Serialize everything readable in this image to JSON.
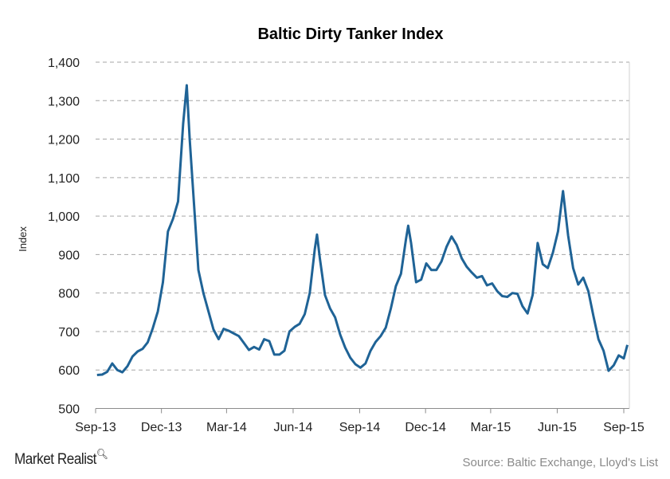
{
  "chart_data": {
    "type": "line",
    "title": "Baltic Dirty Tanker Index",
    "xlabel": "",
    "ylabel": "Index",
    "ylim": [
      500,
      1400
    ],
    "yticks": [
      "500",
      "600",
      "700",
      "800",
      "900",
      "1,000",
      "1,100",
      "1,200",
      "1,300",
      "1,400"
    ],
    "ytick_values": [
      500,
      600,
      700,
      800,
      900,
      1000,
      1100,
      1200,
      1300,
      1400
    ],
    "xticks": [
      "Sep-13",
      "Dec-13",
      "Mar-14",
      "Jun-14",
      "Sep-14",
      "Dec-14",
      "Mar-15",
      "Jun-15",
      "Sep-15"
    ],
    "xtick_dates": [
      "2013-09-01",
      "2013-12-01",
      "2014-03-01",
      "2014-06-01",
      "2014-09-01",
      "2014-12-01",
      "2015-03-01",
      "2015-06-01",
      "2015-09-01"
    ],
    "grid": true,
    "line_color": "#1f6396",
    "series": [
      {
        "points": [
          [
            "2013-09-03",
            587
          ],
          [
            "2013-09-10",
            588
          ],
          [
            "2013-09-17",
            595
          ],
          [
            "2013-09-24",
            617
          ],
          [
            "2013-10-01",
            600
          ],
          [
            "2013-10-08",
            594
          ],
          [
            "2013-10-15",
            610
          ],
          [
            "2013-10-22",
            635
          ],
          [
            "2013-10-29",
            648
          ],
          [
            "2013-11-05",
            655
          ],
          [
            "2013-11-12",
            672
          ],
          [
            "2013-11-19",
            708
          ],
          [
            "2013-11-26",
            752
          ],
          [
            "2013-12-03",
            828
          ],
          [
            "2013-12-10",
            960
          ],
          [
            "2013-12-17",
            993
          ],
          [
            "2013-12-24",
            1038
          ],
          [
            "2013-12-31",
            1240
          ],
          [
            "2014-01-05",
            1340
          ],
          [
            "2014-01-09",
            1200
          ],
          [
            "2014-01-14",
            1060
          ],
          [
            "2014-01-21",
            860
          ],
          [
            "2014-01-28",
            800
          ],
          [
            "2014-02-04",
            752
          ],
          [
            "2014-02-11",
            705
          ],
          [
            "2014-02-18",
            680
          ],
          [
            "2014-02-25",
            707
          ],
          [
            "2014-03-04",
            702
          ],
          [
            "2014-03-11",
            695
          ],
          [
            "2014-03-18",
            688
          ],
          [
            "2014-03-25",
            670
          ],
          [
            "2014-04-01",
            652
          ],
          [
            "2014-04-08",
            660
          ],
          [
            "2014-04-15",
            653
          ],
          [
            "2014-04-22",
            680
          ],
          [
            "2014-04-29",
            675
          ],
          [
            "2014-05-06",
            640
          ],
          [
            "2014-05-13",
            640
          ],
          [
            "2014-05-20",
            650
          ],
          [
            "2014-05-27",
            700
          ],
          [
            "2014-06-03",
            712
          ],
          [
            "2014-06-10",
            720
          ],
          [
            "2014-06-17",
            745
          ],
          [
            "2014-06-24",
            800
          ],
          [
            "2014-07-01",
            915
          ],
          [
            "2014-07-04",
            952
          ],
          [
            "2014-07-08",
            890
          ],
          [
            "2014-07-15",
            795
          ],
          [
            "2014-07-22",
            760
          ],
          [
            "2014-07-29",
            737
          ],
          [
            "2014-08-05",
            692
          ],
          [
            "2014-08-12",
            658
          ],
          [
            "2014-08-19",
            632
          ],
          [
            "2014-08-26",
            615
          ],
          [
            "2014-09-02",
            606
          ],
          [
            "2014-09-09",
            617
          ],
          [
            "2014-09-16",
            650
          ],
          [
            "2014-09-23",
            673
          ],
          [
            "2014-09-30",
            688
          ],
          [
            "2014-10-07",
            710
          ],
          [
            "2014-10-14",
            760
          ],
          [
            "2014-10-21",
            818
          ],
          [
            "2014-10-28",
            850
          ],
          [
            "2014-11-04",
            940
          ],
          [
            "2014-11-07",
            975
          ],
          [
            "2014-11-11",
            930
          ],
          [
            "2014-11-18",
            828
          ],
          [
            "2014-11-25",
            835
          ],
          [
            "2014-12-02",
            877
          ],
          [
            "2014-12-09",
            860
          ],
          [
            "2014-12-16",
            860
          ],
          [
            "2014-12-23",
            882
          ],
          [
            "2014-12-30",
            920
          ],
          [
            "2015-01-06",
            947
          ],
          [
            "2015-01-13",
            925
          ],
          [
            "2015-01-20",
            890
          ],
          [
            "2015-01-27",
            868
          ],
          [
            "2015-02-03",
            853
          ],
          [
            "2015-02-10",
            840
          ],
          [
            "2015-02-17",
            844
          ],
          [
            "2015-02-24",
            820
          ],
          [
            "2015-03-03",
            825
          ],
          [
            "2015-03-10",
            805
          ],
          [
            "2015-03-17",
            792
          ],
          [
            "2015-03-24",
            790
          ],
          [
            "2015-03-31",
            800
          ],
          [
            "2015-04-07",
            798
          ],
          [
            "2015-04-14",
            766
          ],
          [
            "2015-04-21",
            747
          ],
          [
            "2015-04-28",
            795
          ],
          [
            "2015-05-05",
            930
          ],
          [
            "2015-05-12",
            875
          ],
          [
            "2015-05-19",
            865
          ],
          [
            "2015-05-26",
            905
          ],
          [
            "2015-06-02",
            960
          ],
          [
            "2015-06-09",
            1065
          ],
          [
            "2015-06-16",
            950
          ],
          [
            "2015-06-23",
            865
          ],
          [
            "2015-06-30",
            822
          ],
          [
            "2015-07-07",
            840
          ],
          [
            "2015-07-14",
            805
          ],
          [
            "2015-07-21",
            740
          ],
          [
            "2015-07-28",
            680
          ],
          [
            "2015-08-04",
            650
          ],
          [
            "2015-08-11",
            598
          ],
          [
            "2015-08-18",
            612
          ],
          [
            "2015-08-25",
            638
          ],
          [
            "2015-09-01",
            630
          ],
          [
            "2015-09-06",
            665
          ]
        ]
      }
    ]
  },
  "footer": {
    "logo": "Market Realist",
    "source": "Source: Baltic Exchange, Lloyd's List"
  }
}
